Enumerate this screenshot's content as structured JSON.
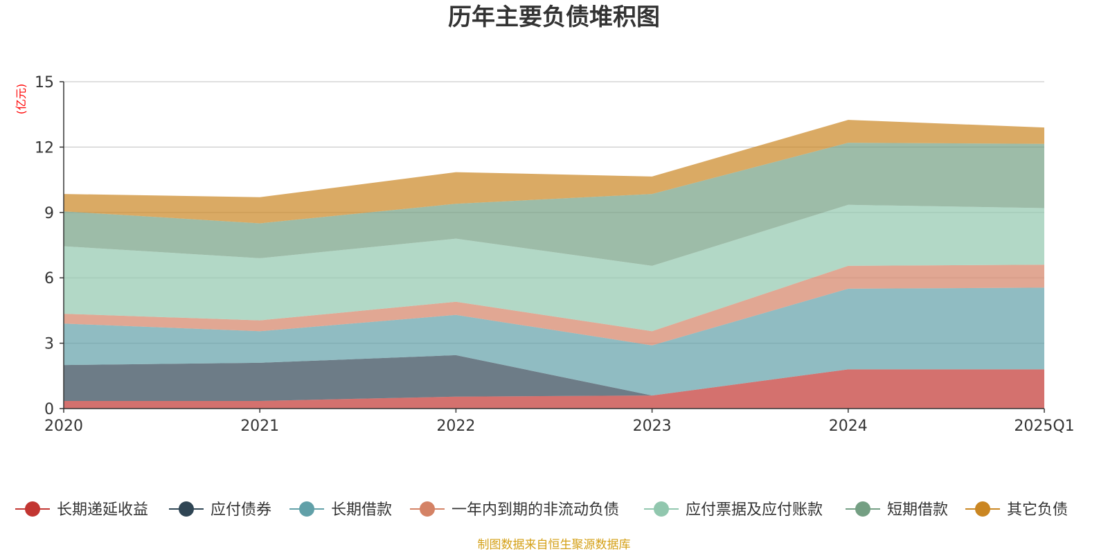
{
  "chart_data": {
    "type": "area",
    "stacked": true,
    "title": "历年主要负债堆积图",
    "ylabel": "(亿元)",
    "xlabel": "",
    "ylim": [
      0,
      15
    ],
    "yticks": [
      0,
      3,
      6,
      9,
      12,
      15
    ],
    "categories": [
      "2020",
      "2021",
      "2022",
      "2023",
      "2024",
      "2025Q1"
    ],
    "grid": true,
    "legend_position": "bottom",
    "series": [
      {
        "name": "长期递延收益",
        "color": "#c23531",
        "values": [
          0.35,
          0.35,
          0.55,
          0.6,
          1.8,
          1.8
        ]
      },
      {
        "name": "应付债券",
        "color": "#2f4554",
        "values": [
          1.65,
          1.75,
          1.9,
          0.0,
          0.0,
          0.0
        ]
      },
      {
        "name": "长期借款",
        "color": "#61a0a8",
        "values": [
          1.9,
          1.45,
          1.85,
          2.3,
          3.7,
          3.75
        ]
      },
      {
        "name": "一年内到期的非流动负债",
        "color": "#d48265",
        "values": [
          0.45,
          0.5,
          0.6,
          0.65,
          1.05,
          1.05
        ]
      },
      {
        "name": "应付票据及应付账款",
        "color": "#91c7ae",
        "values": [
          3.1,
          2.85,
          2.9,
          3.0,
          2.8,
          2.6
        ]
      },
      {
        "name": "短期借款",
        "color": "#749f83",
        "values": [
          1.6,
          1.6,
          1.6,
          3.3,
          2.85,
          2.95
        ]
      },
      {
        "name": "其它负债",
        "color": "#ca8622",
        "values": [
          0.8,
          1.2,
          1.45,
          0.8,
          1.05,
          0.75
        ]
      }
    ],
    "source": "制图数据来自恒生聚源数据库",
    "colors": {
      "axis": "#333333",
      "grid": "#cccccc",
      "unit": "#ff0000",
      "source": "#d4a017"
    }
  }
}
